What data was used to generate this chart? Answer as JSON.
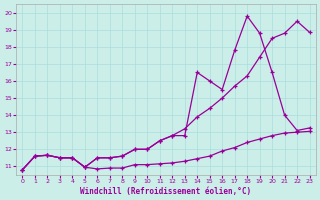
{
  "xlabel": "Windchill (Refroidissement éolien,°C)",
  "bg_color": "#cceee8",
  "grid_color": "#aadddd",
  "line_color": "#990099",
  "spine_color": "#aaaaaa",
  "ylim": [
    10.5,
    20.5
  ],
  "xlim": [
    -0.5,
    23.5
  ],
  "yticks": [
    11,
    12,
    13,
    14,
    15,
    16,
    17,
    18,
    19,
    20
  ],
  "xticks": [
    0,
    1,
    2,
    3,
    4,
    5,
    6,
    7,
    8,
    9,
    10,
    11,
    12,
    13,
    14,
    15,
    16,
    17,
    18,
    19,
    20,
    21,
    22,
    23
  ],
  "line1_x": [
    0,
    1,
    2,
    3,
    4,
    5,
    6,
    7,
    8,
    9,
    10,
    11,
    12,
    13,
    14,
    15,
    16,
    17,
    18,
    19,
    20,
    21,
    22,
    23
  ],
  "line1_y": [
    10.8,
    11.6,
    11.65,
    11.5,
    11.5,
    10.95,
    10.85,
    10.9,
    10.9,
    11.1,
    11.1,
    11.15,
    11.2,
    11.3,
    11.45,
    11.6,
    11.9,
    12.1,
    12.4,
    12.6,
    12.8,
    12.95,
    13.0,
    13.05
  ],
  "line2_x": [
    0,
    1,
    2,
    3,
    4,
    5,
    6,
    7,
    8,
    9,
    10,
    11,
    12,
    13,
    14,
    15,
    16,
    17,
    18,
    19,
    20,
    21,
    22,
    23
  ],
  "line2_y": [
    10.8,
    11.6,
    11.65,
    11.5,
    11.5,
    10.95,
    11.5,
    11.5,
    11.6,
    12.0,
    12.0,
    12.5,
    12.8,
    13.2,
    13.9,
    14.4,
    15.0,
    15.7,
    16.3,
    17.4,
    18.5,
    18.8,
    19.5,
    18.85
  ],
  "line3_x": [
    0,
    1,
    2,
    3,
    4,
    5,
    6,
    7,
    8,
    9,
    10,
    11,
    12,
    13,
    14,
    15,
    16,
    17,
    18,
    19,
    20,
    21,
    22,
    23
  ],
  "line3_y": [
    10.8,
    11.6,
    11.65,
    11.5,
    11.5,
    10.95,
    11.5,
    11.5,
    11.6,
    12.0,
    12.0,
    12.5,
    12.8,
    12.8,
    16.5,
    16.0,
    15.5,
    17.8,
    19.8,
    18.8,
    16.5,
    14.0,
    13.1,
    13.25
  ]
}
